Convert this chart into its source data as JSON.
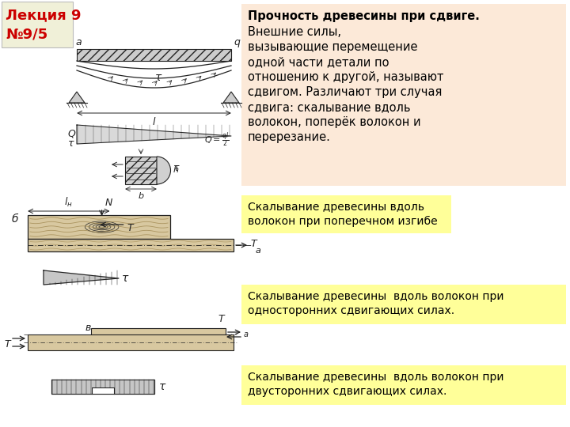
{
  "title_line1": "Лекция 9",
  "title_line2": "№9/5",
  "title_bg": "#f0f0d8",
  "title_fg": "#cc0000",
  "main_bg": "#ffffff",
  "text_box_bg": "#fce9d8",
  "text_bold": "Прочность древесины при сдвиге.",
  "text_normal_lines": [
    "Внешние силы,",
    "вызывающие перемещение",
    "одной части детали по",
    "отношению к другой, называют",
    "сдвигом. Различают три случая",
    "сдвига: скалывание вдоль",
    "волокон, поперёк волокон и",
    "перерезание."
  ],
  "yellow_bg": "#ffff99",
  "ybox1_lines": [
    "Скалывание древесины вдоль",
    "волокон при поперечном изгибе"
  ],
  "ybox2_lines": [
    "Скалывание древесины  вдоль волокон при",
    "односторонних сдвигающих силах."
  ],
  "ybox3_lines": [
    "Скалывание древесины  вдоль волокон при",
    "двусторонних сдвигающих силах."
  ],
  "lc": "#222222",
  "wood_fill": "#d8c8a0",
  "wood_grain": "#a08850"
}
